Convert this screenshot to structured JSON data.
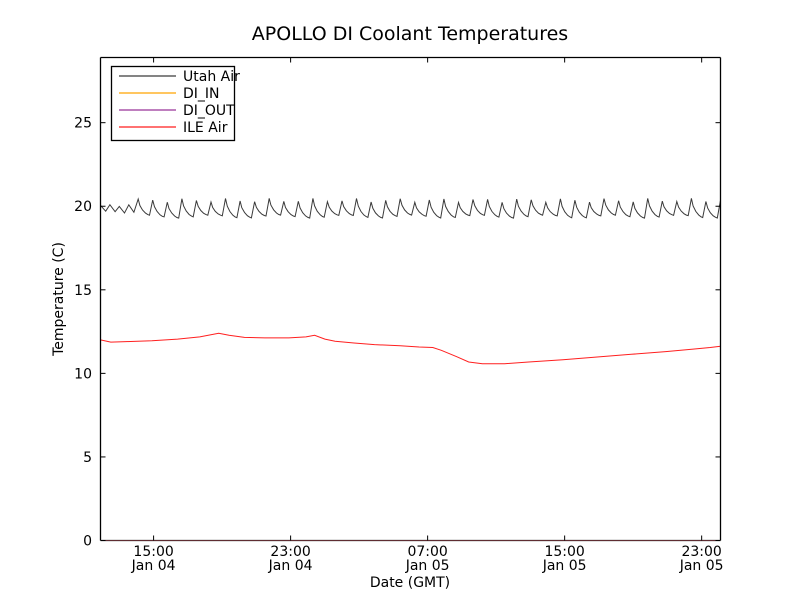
{
  "page": {
    "background_color": "#ffffff",
    "axis_color": "#000000"
  },
  "chart_data": {
    "type": "line",
    "title": "APOLLO DI Coolant Temperatures",
    "xlabel": "Date (GMT)",
    "ylabel": "Temperature (C)",
    "grid": false,
    "legend_position": "upper left",
    "xlim_hours": [
      0,
      36.2
    ],
    "ylim": [
      0,
      28.9
    ],
    "y_ticks": [
      0,
      5,
      10,
      15,
      20,
      25
    ],
    "x_ticks": [
      {
        "hours": 3.1,
        "time": "15:00",
        "date": "Jan 04"
      },
      {
        "hours": 11.1,
        "time": "23:00",
        "date": "Jan 04"
      },
      {
        "hours": 19.1,
        "time": "07:00",
        "date": "Jan 05"
      },
      {
        "hours": 27.1,
        "time": "15:00",
        "date": "Jan 05"
      },
      {
        "hours": 35.1,
        "time": "23:00",
        "date": "Jan 05"
      }
    ],
    "series": [
      {
        "name": "Utah Air",
        "color": "#3a3a3a",
        "opacity": 1,
        "oscillation": {
          "start_hours": 2.2,
          "end_hours": 36.2,
          "period_hours": 0.85,
          "peak_c": 20.35,
          "peak_jitter": 0.12,
          "trough_c": 19.38,
          "trough_jitter": 0.09,
          "intro": {
            "end_hours": 2.2,
            "period_hours": 0.55,
            "high_c": 20.05,
            "low_c": 19.65
          }
        }
      },
      {
        "name": "DI_IN",
        "color": "#ffa500",
        "opacity": 1,
        "points": [
          [
            0,
            0
          ],
          [
            36.2,
            0
          ]
        ]
      },
      {
        "name": "DI_OUT",
        "color": "#993399",
        "opacity": 0.65,
        "points": [
          [
            0,
            0
          ],
          [
            36.2,
            0
          ]
        ]
      },
      {
        "name": "ILE Air",
        "color": "#ff1f1f",
        "opacity": 1,
        "points": [
          [
            0,
            12.0
          ],
          [
            0.6,
            11.87
          ],
          [
            1.5,
            11.9
          ],
          [
            3.0,
            11.95
          ],
          [
            4.5,
            12.05
          ],
          [
            5.8,
            12.18
          ],
          [
            6.9,
            12.4
          ],
          [
            7.5,
            12.28
          ],
          [
            8.4,
            12.15
          ],
          [
            9.6,
            12.12
          ],
          [
            11.0,
            12.12
          ],
          [
            12.0,
            12.18
          ],
          [
            12.5,
            12.28
          ],
          [
            13.1,
            12.05
          ],
          [
            13.7,
            11.92
          ],
          [
            14.8,
            11.82
          ],
          [
            16.0,
            11.72
          ],
          [
            17.5,
            11.65
          ],
          [
            18.6,
            11.58
          ],
          [
            19.4,
            11.55
          ],
          [
            19.9,
            11.38
          ],
          [
            20.8,
            11.0
          ],
          [
            21.5,
            10.68
          ],
          [
            22.3,
            10.58
          ],
          [
            23.6,
            10.58
          ],
          [
            25.0,
            10.68
          ],
          [
            27.0,
            10.82
          ],
          [
            29.0,
            10.98
          ],
          [
            31.0,
            11.14
          ],
          [
            33.0,
            11.3
          ],
          [
            34.6,
            11.45
          ],
          [
            35.6,
            11.55
          ],
          [
            36.2,
            11.62
          ]
        ]
      }
    ]
  }
}
